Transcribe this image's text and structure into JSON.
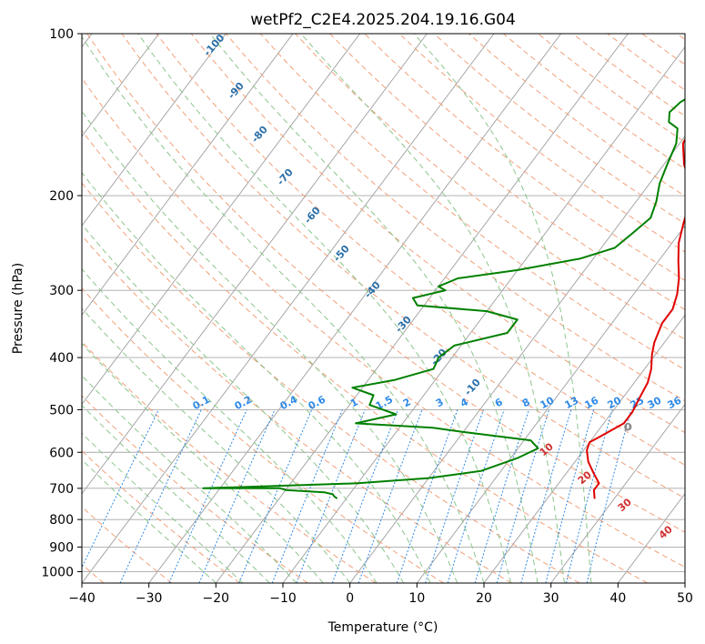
{
  "chart_data": {
    "type": "line",
    "title": "wetPf2_C2E4.2025.204.19.16.G04",
    "xlabel": "Temperature (°C)",
    "ylabel": "Pressure (hPa)",
    "xlim": [
      -40,
      50
    ],
    "ylim": [
      1050,
      100
    ],
    "y_scale": "log",
    "grid": true,
    "x_ticks": [
      "−40",
      "−30",
      "−20",
      "−10",
      "0",
      "10",
      "20",
      "30",
      "40",
      "50"
    ],
    "y_ticks": [
      {
        "p": 100,
        "label": "100"
      },
      {
        "p": 200,
        "label": "200"
      },
      {
        "p": 300,
        "label": "300"
      },
      {
        "p": 400,
        "label": "400"
      },
      {
        "p": 500,
        "label": "500"
      },
      {
        "p": 600,
        "label": "600"
      },
      {
        "p": 700,
        "label": "700"
      },
      {
        "p": 800,
        "label": "800"
      },
      {
        "p": 900,
        "label": "900"
      },
      {
        "p": 1000,
        "label": "1000"
      }
    ],
    "series": [
      {
        "color": "#e00000",
        "points": [
          [
            6,
            100
          ],
          [
            5.5,
            108
          ],
          [
            5,
            115
          ],
          [
            5.5,
            122
          ],
          [
            6.5,
            130
          ],
          [
            6,
            137
          ],
          [
            3,
            143
          ],
          [
            0,
            150
          ],
          [
            0.5,
            160
          ],
          [
            3,
            175
          ],
          [
            6,
            190
          ],
          [
            8,
            205
          ],
          [
            9.5,
            225
          ],
          [
            11,
            245
          ],
          [
            13,
            265
          ],
          [
            15,
            285
          ],
          [
            16.5,
            305
          ],
          [
            17.5,
            325
          ],
          [
            17.5,
            345
          ],
          [
            18,
            360
          ],
          [
            18.5,
            375
          ],
          [
            19.5,
            395
          ],
          [
            21,
            420
          ],
          [
            22,
            445
          ],
          [
            22.5,
            475
          ],
          [
            23,
            505
          ],
          [
            23,
            530
          ],
          [
            21,
            560
          ],
          [
            20,
            575
          ],
          [
            20.5,
            595
          ],
          [
            22,
            625
          ],
          [
            24,
            655
          ],
          [
            26,
            685
          ],
          [
            26,
            705
          ],
          [
            27,
            730
          ]
        ]
      },
      {
        "color": "#008000",
        "points": [
          [
            2,
            100
          ],
          [
            0,
            110
          ],
          [
            -1,
            118
          ],
          [
            -2.5,
            126
          ],
          [
            -4.5,
            134
          ],
          [
            -5,
            140
          ],
          [
            -4,
            146
          ],
          [
            -2,
            150
          ],
          [
            -0.5,
            160
          ],
          [
            0.5,
            175
          ],
          [
            1.5,
            190
          ],
          [
            3,
            205
          ],
          [
            4,
            220
          ],
          [
            3,
            235
          ],
          [
            2,
            250
          ],
          [
            -2,
            262
          ],
          [
            -10,
            275
          ],
          [
            -18,
            285
          ],
          [
            -20,
            295
          ],
          [
            -18.5,
            300
          ],
          [
            -22.5,
            310
          ],
          [
            -21,
            320
          ],
          [
            -10,
            328
          ],
          [
            -4.5,
            340
          ],
          [
            -4.5,
            360
          ],
          [
            -11,
            380
          ],
          [
            -12,
            400
          ],
          [
            -11.5,
            420
          ],
          [
            -16,
            440
          ],
          [
            -21.5,
            455
          ],
          [
            -17.5,
            470
          ],
          [
            -17,
            490
          ],
          [
            -12,
            510
          ],
          [
            -17,
            530
          ],
          [
            -5,
            540
          ],
          [
            0,
            550
          ],
          [
            11,
            570
          ],
          [
            13,
            590
          ],
          [
            11,
            615
          ],
          [
            7,
            650
          ],
          [
            0,
            670
          ],
          [
            -10,
            685
          ],
          [
            -25,
            695
          ],
          [
            -32.5,
            700
          ],
          [
            -21,
            700
          ],
          [
            -20,
            705
          ],
          [
            -14,
            712
          ],
          [
            -12.5,
            718
          ],
          [
            -12,
            725
          ],
          [
            -11.5,
            730
          ]
        ]
      }
    ],
    "parcel_point": {
      "x": 24,
      "p": 538,
      "label": "0"
    },
    "dry_adiabat_labels": [
      "10",
      "20",
      "30",
      "40"
    ],
    "isohume_labels": [
      "-100",
      "-90",
      "-80",
      "-70",
      "-60",
      "-50",
      "-40",
      "-30",
      "-20",
      "-10"
    ],
    "mixing_ratio_labels": [
      "0.1",
      "0.2",
      "0.4",
      "0.6",
      "1",
      "1.5",
      "2",
      "3",
      "4",
      "6",
      "8",
      "10",
      "13",
      "16",
      "20",
      "25",
      "30",
      "36"
    ],
    "colors": {
      "isotherm": "#9e9e9e",
      "isobar": "#a8a8a8",
      "dry_adiabat": "#f2a07a",
      "moist_adiabat": "#8cc58c",
      "mixing_ratio": "#2e8ae6",
      "mr_label": "#2e8ae6",
      "dry_label": "#d03030",
      "iso_label": "#2a6fa8",
      "tan_curve": "#d8bf9a"
    }
  }
}
